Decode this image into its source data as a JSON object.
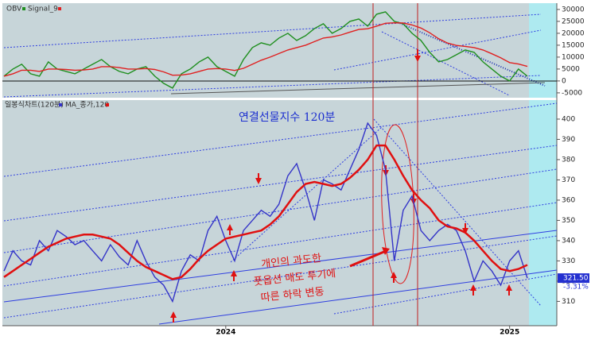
{
  "chart_data": [
    {
      "type": "line",
      "series": [
        {
          "name": "OBV",
          "color": "#1f8f1f",
          "values": [
            2000,
            5000,
            7000,
            3000,
            2000,
            8000,
            5000,
            4000,
            3000,
            5000,
            7000,
            9000,
            6000,
            4000,
            3000,
            5000,
            6000,
            2000,
            -1000,
            -3000,
            3000,
            5000,
            8000,
            10000,
            6000,
            4000,
            2000,
            9000,
            14000,
            16000,
            15000,
            18000,
            20000,
            17000,
            19000,
            22000,
            24000,
            20000,
            22000,
            25000,
            26000,
            23000,
            28000,
            29000,
            25000,
            24000,
            20000,
            17000,
            12000,
            8000,
            9000,
            11000,
            13000,
            12000,
            8000,
            5000,
            2000,
            0,
            5000,
            2000
          ]
        },
        {
          "name": "Signal_9",
          "color": "#e02020",
          "values": [
            2000,
            3000,
            4500,
            4500,
            4000,
            5000,
            5000,
            4800,
            4500,
            4600,
            5000,
            6000,
            6000,
            5600,
            5000,
            5000,
            5200,
            4800,
            3800,
            2400,
            2500,
            3000,
            4000,
            5000,
            5200,
            5000,
            4400,
            5300,
            7000,
            8700,
            10000,
            11500,
            13000,
            14000,
            15000,
            16500,
            18000,
            18500,
            19300,
            20500,
            21600,
            21900,
            23000,
            24200,
            24400,
            24300,
            23500,
            22200,
            20200,
            17700,
            15900,
            14900,
            14500,
            14000,
            13000,
            11400,
            9700,
            7700,
            7100,
            6100
          ]
        }
      ],
      "ylim": [
        -6700,
        32300
      ],
      "yticks": [
        30000,
        25000,
        20000,
        15000,
        10000,
        5000,
        0,
        -5000
      ]
    },
    {
      "type": "line",
      "title": "연결선물지수 120분",
      "annotation": [
        "개인의 과도한",
        "풋옵션 매도 투기에",
        "따른 하락 변동"
      ],
      "categories": [
        null,
        null,
        null,
        null,
        null,
        null,
        null,
        null,
        null,
        null,
        null,
        null,
        null,
        null,
        null,
        null,
        null,
        null,
        null,
        null,
        null,
        null,
        null,
        null,
        null,
        "2024",
        null,
        null,
        null,
        null,
        null,
        null,
        null,
        null,
        null,
        null,
        null,
        null,
        null,
        null,
        null,
        null,
        null,
        null,
        null,
        null,
        null,
        null,
        null,
        null,
        null,
        null,
        null,
        null,
        null,
        null,
        null,
        "2025",
        null,
        null
      ],
      "series": [
        {
          "name": "일봉식차트(120분)",
          "color": "#3434c8",
          "values": [
            325,
            335,
            330,
            328,
            340,
            335,
            345,
            342,
            338,
            340,
            335,
            330,
            338,
            332,
            328,
            340,
            330,
            322,
            318,
            310,
            325,
            333,
            330,
            345,
            352,
            340,
            330,
            345,
            350,
            355,
            352,
            358,
            372,
            378,
            365,
            350,
            370,
            368,
            365,
            375,
            385,
            398,
            392,
            375,
            330,
            355,
            362,
            345,
            340,
            345,
            348,
            345,
            335,
            320,
            330,
            325,
            318,
            330,
            335,
            321.5
          ]
        },
        {
          "name": "MA_종가,120",
          "color": "#e01010",
          "values": [
            322,
            325,
            328,
            331,
            334,
            337,
            339,
            341,
            342,
            343,
            343,
            342,
            341,
            338,
            334,
            330,
            327,
            325,
            323,
            321,
            322,
            326,
            331,
            335,
            338,
            341,
            342,
            343,
            344,
            345,
            348,
            352,
            358,
            364,
            368,
            369,
            368,
            367,
            368,
            371,
            375,
            380,
            387,
            387,
            380,
            372,
            365,
            360,
            356,
            350,
            347,
            346,
            344,
            340,
            335,
            330,
            326,
            325,
            326,
            328
          ]
        }
      ],
      "last_price": {
        "value": 321.5,
        "label": "321.50"
      },
      "change": {
        "value": -3.31,
        "label": "-3.31%"
      },
      "ylim": [
        298,
        409
      ],
      "yticks": [
        400,
        390,
        380,
        370,
        360,
        350,
        340,
        330,
        320,
        310
      ]
    }
  ]
}
